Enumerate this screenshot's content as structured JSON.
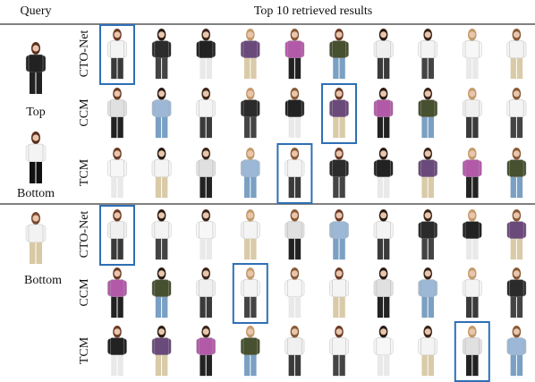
{
  "header": {
    "query": "Query",
    "results": "Top 10 retrieved results"
  },
  "sections": [
    {
      "query_labels": [
        "Top",
        "Bottom"
      ],
      "methods": [
        "CTO-Net",
        "CCM",
        "TCM"
      ]
    },
    {
      "query_labels": [
        "Bottom"
      ],
      "methods": [
        "CTO-Net",
        "CCM",
        "TCM"
      ]
    }
  ]
}
